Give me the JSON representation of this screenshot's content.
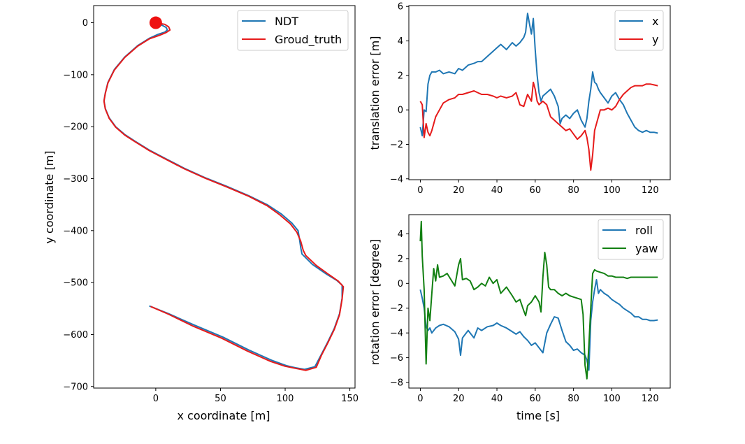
{
  "chart_data": [
    {
      "type": "line",
      "xlabel": "x coordinate [m]",
      "ylabel": "y coordinate [m]",
      "xlim": [
        -48,
        154
      ],
      "ylim": [
        -703,
        33
      ],
      "xticks": [
        0,
        50,
        100,
        150
      ],
      "yticks": [
        0,
        -100,
        -200,
        -300,
        -400,
        -500,
        -600,
        -700
      ],
      "xtick_labels": [
        "0",
        "50",
        "100",
        "150"
      ],
      "ytick_labels": [
        "0",
        "−100",
        "−200",
        "−300",
        "−400",
        "−500",
        "−600",
        "−700"
      ],
      "grid": false,
      "legend": "top-right",
      "marker": {
        "x": 0,
        "y": 0,
        "color": "#ee1111"
      },
      "series": [
        {
          "name": "NDT",
          "color": "#1f77b4",
          "x": [
            0,
            5,
            8,
            9,
            7,
            2,
            -5,
            -14,
            -24,
            -32,
            -37,
            -39,
            -40,
            -39,
            -36,
            -31,
            -24,
            -16,
            -5,
            8,
            22,
            38,
            55,
            72,
            86,
            97,
            105,
            110,
            111,
            112,
            113,
            121,
            132,
            140,
            144,
            144,
            142,
            138,
            133,
            128,
            123,
            115,
            108,
            101,
            90,
            72,
            52,
            30,
            10,
            -5
          ],
          "y": [
            0,
            -5,
            -9,
            -14,
            -18,
            -22,
            -30,
            -44,
            -66,
            -90,
            -115,
            -135,
            -150,
            -165,
            -183,
            -200,
            -215,
            -228,
            -245,
            -262,
            -280,
            -298,
            -315,
            -333,
            -350,
            -368,
            -385,
            -400,
            -415,
            -432,
            -445,
            -465,
            -484,
            -496,
            -505,
            -530,
            -560,
            -588,
            -614,
            -638,
            -662,
            -667,
            -664,
            -660,
            -650,
            -630,
            -605,
            -582,
            -560,
            -545
          ]
        },
        {
          "name": "Groud_truth",
          "color": "#e61b1b",
          "x": [
            0,
            7,
            10,
            11,
            8,
            3,
            -5,
            -14,
            -24,
            -32,
            -37,
            -39,
            -40,
            -39,
            -36,
            -31,
            -24,
            -16,
            -5,
            8,
            22,
            38,
            55,
            72,
            86,
            96,
            104,
            109,
            112,
            114,
            116,
            124,
            134,
            141,
            145,
            144,
            142,
            138,
            133,
            128,
            124,
            116,
            108,
            100,
            89,
            71,
            51,
            29,
            10,
            -4
          ],
          "y": [
            0,
            -3,
            -8,
            -14,
            -19,
            -24,
            -31,
            -45,
            -67,
            -91,
            -116,
            -136,
            -151,
            -166,
            -184,
            -201,
            -216,
            -229,
            -246,
            -263,
            -281,
            -299,
            -316,
            -334,
            -352,
            -370,
            -387,
            -403,
            -420,
            -438,
            -448,
            -467,
            -485,
            -497,
            -508,
            -532,
            -562,
            -590,
            -616,
            -640,
            -663,
            -669,
            -665,
            -661,
            -652,
            -632,
            -607,
            -584,
            -561,
            -546
          ]
        }
      ]
    },
    {
      "type": "line",
      "xlabel": "",
      "ylabel": "translation error [m]",
      "xlim": [
        -6,
        130.5
      ],
      "ylim": [
        -4.05,
        6.05
      ],
      "xticks": [
        0,
        20,
        40,
        60,
        80,
        100,
        120
      ],
      "yticks": [
        -4,
        -2,
        0,
        2,
        4,
        6
      ],
      "xtick_labels": [
        "0",
        "20",
        "40",
        "60",
        "80",
        "100",
        "120"
      ],
      "ytick_labels": [
        "−4",
        "−2",
        "0",
        "2",
        "4",
        "6"
      ],
      "grid": false,
      "legend": "top-right",
      "series": [
        {
          "name": "x",
          "color": "#1f77b4",
          "x": [
            0,
            1,
            2,
            3,
            4,
            5,
            6,
            8,
            10,
            12,
            15,
            18,
            20,
            22,
            25,
            28,
            30,
            32,
            35,
            38,
            40,
            42,
            45,
            48,
            50,
            52,
            54,
            55,
            56,
            57,
            58,
            59,
            60,
            61,
            62,
            63,
            64,
            66,
            68,
            70,
            72,
            73,
            74,
            76,
            78,
            80,
            82,
            84,
            86,
            87,
            88,
            89,
            90,
            91,
            92,
            93,
            94,
            96,
            98,
            100,
            102,
            104,
            106,
            108,
            110,
            112,
            114,
            116,
            118,
            120,
            122,
            124
          ],
          "y": [
            -1.0,
            -1.5,
            0.0,
            -0.1,
            1.5,
            2.0,
            2.2,
            2.2,
            2.3,
            2.1,
            2.2,
            2.1,
            2.4,
            2.3,
            2.6,
            2.7,
            2.8,
            2.8,
            3.1,
            3.4,
            3.6,
            3.8,
            3.5,
            3.9,
            3.7,
            3.9,
            4.2,
            4.5,
            5.6,
            5.0,
            4.4,
            5.3,
            3.5,
            2.0,
            1.0,
            0.5,
            0.8,
            1.0,
            1.2,
            0.8,
            0.2,
            -0.8,
            -0.5,
            -0.3,
            -0.5,
            -0.2,
            0.0,
            -0.6,
            -1.0,
            -0.5,
            0.5,
            1.2,
            2.2,
            1.6,
            1.5,
            1.2,
            1.0,
            0.7,
            0.4,
            0.8,
            1.0,
            0.6,
            0.3,
            -0.2,
            -0.6,
            -1.0,
            -1.2,
            -1.3,
            -1.2,
            -1.3,
            -1.3,
            -1.35
          ]
        },
        {
          "name": "y",
          "color": "#e61b1b",
          "x": [
            0,
            1,
            2,
            3,
            4,
            5,
            6,
            8,
            10,
            12,
            15,
            18,
            20,
            22,
            25,
            28,
            30,
            32,
            35,
            38,
            40,
            42,
            45,
            48,
            50,
            52,
            54,
            56,
            58,
            59,
            60,
            61,
            62,
            64,
            66,
            68,
            70,
            72,
            74,
            76,
            78,
            80,
            82,
            84,
            86,
            87,
            88,
            89,
            90,
            91,
            92,
            94,
            96,
            98,
            100,
            102,
            104,
            106,
            108,
            110,
            112,
            114,
            116,
            118,
            120,
            122,
            124
          ],
          "y": [
            0.5,
            0.3,
            -1.6,
            -0.8,
            -1.3,
            -1.5,
            -1.2,
            -0.4,
            0.0,
            0.4,
            0.6,
            0.7,
            0.9,
            0.9,
            1.0,
            1.1,
            1.0,
            0.9,
            0.9,
            0.8,
            0.7,
            0.8,
            0.7,
            0.8,
            1.0,
            0.3,
            0.2,
            0.9,
            0.5,
            1.6,
            1.2,
            0.5,
            0.3,
            0.5,
            0.3,
            -0.4,
            -0.6,
            -0.8,
            -1.0,
            -1.2,
            -1.1,
            -1.4,
            -1.7,
            -1.5,
            -1.2,
            -1.6,
            -2.3,
            -3.5,
            -2.6,
            -1.2,
            -0.8,
            0.0,
            0.0,
            0.1,
            0.0,
            0.2,
            0.6,
            0.9,
            1.1,
            1.3,
            1.4,
            1.4,
            1.4,
            1.5,
            1.5,
            1.45,
            1.4
          ]
        }
      ]
    },
    {
      "type": "line",
      "xlabel": "time [s]",
      "ylabel": "rotation error [degree]",
      "xlim": [
        -6,
        130.5
      ],
      "ylim": [
        -8.45,
        5.55
      ],
      "xticks": [
        0,
        20,
        40,
        60,
        80,
        100,
        120
      ],
      "yticks": [
        -8,
        -6,
        -4,
        -2,
        0,
        2,
        4
      ],
      "xtick_labels": [
        "0",
        "20",
        "40",
        "60",
        "80",
        "100",
        "120"
      ],
      "ytick_labels": [
        "−8",
        "−6",
        "−4",
        "−2",
        "0",
        "2",
        "4"
      ],
      "grid": false,
      "legend": "top-right",
      "series": [
        {
          "name": "roll",
          "color": "#1f77b4",
          "x": [
            0,
            1,
            2,
            3,
            4,
            5,
            6,
            8,
            10,
            12,
            15,
            18,
            20,
            21,
            22,
            25,
            28,
            30,
            32,
            35,
            38,
            40,
            42,
            45,
            48,
            50,
            52,
            54,
            56,
            58,
            60,
            62,
            64,
            66,
            68,
            70,
            72,
            74,
            76,
            78,
            80,
            82,
            84,
            86,
            87,
            88,
            89,
            90,
            91,
            92,
            93,
            94,
            96,
            98,
            100,
            102,
            104,
            106,
            108,
            110,
            112,
            114,
            116,
            118,
            120,
            122,
            124
          ],
          "y": [
            -0.5,
            -1.2,
            -2.0,
            -3.5,
            -3.8,
            -3.6,
            -4.0,
            -3.6,
            -3.4,
            -3.3,
            -3.5,
            -3.9,
            -4.5,
            -5.8,
            -4.4,
            -3.8,
            -4.4,
            -3.6,
            -3.8,
            -3.5,
            -3.4,
            -3.2,
            -3.4,
            -3.6,
            -3.9,
            -4.1,
            -3.9,
            -4.3,
            -4.6,
            -5.0,
            -4.8,
            -5.2,
            -5.6,
            -4.0,
            -3.3,
            -2.7,
            -2.8,
            -3.8,
            -4.7,
            -5.0,
            -5.4,
            -5.3,
            -5.6,
            -5.8,
            -6.2,
            -7.0,
            -3.0,
            -1.5,
            -0.5,
            0.3,
            -0.8,
            -0.5,
            -0.8,
            -1.0,
            -1.3,
            -1.5,
            -1.7,
            -2.0,
            -2.2,
            -2.4,
            -2.7,
            -2.7,
            -2.9,
            -2.9,
            -3.0,
            -3.0,
            -2.95
          ]
        },
        {
          "name": "yaw",
          "color": "#128012",
          "x": [
            0,
            0.5,
            1,
            2,
            3,
            4,
            5,
            6,
            7,
            8,
            9,
            10,
            12,
            14,
            16,
            18,
            20,
            21,
            22,
            24,
            26,
            28,
            30,
            32,
            34,
            36,
            38,
            40,
            42,
            45,
            48,
            50,
            52,
            54,
            55,
            56,
            58,
            60,
            62,
            63,
            64,
            65,
            66,
            67,
            68,
            70,
            72,
            74,
            76,
            78,
            80,
            82,
            84,
            85,
            86,
            87,
            88,
            89,
            90,
            91,
            92,
            94,
            96,
            98,
            100,
            102,
            104,
            106,
            108,
            110,
            112,
            114,
            116,
            118,
            120,
            122,
            124
          ],
          "y": [
            3.4,
            5.0,
            2.2,
            -0.5,
            -6.5,
            -2.0,
            -3.0,
            -0.8,
            1.2,
            0.2,
            1.5,
            0.5,
            0.6,
            0.8,
            0.3,
            -0.2,
            1.5,
            2.0,
            0.3,
            0.4,
            0.2,
            -0.5,
            -0.3,
            0.0,
            -0.2,
            0.5,
            0.0,
            0.3,
            -0.8,
            -0.3,
            -1.0,
            -1.5,
            -1.3,
            -2.2,
            -2.6,
            -1.8,
            -1.5,
            -1.0,
            -1.5,
            -2.3,
            0.5,
            2.5,
            1.5,
            -0.3,
            -0.5,
            -0.5,
            -0.8,
            -1.0,
            -0.8,
            -1.0,
            -1.1,
            -1.2,
            -1.3,
            -2.5,
            -6.6,
            -7.7,
            -5.0,
            -2.0,
            0.8,
            1.1,
            1.0,
            0.9,
            0.8,
            0.6,
            0.6,
            0.5,
            0.5,
            0.5,
            0.4,
            0.5,
            0.5,
            0.5,
            0.5,
            0.5,
            0.5,
            0.5,
            0.5
          ]
        }
      ]
    }
  ]
}
